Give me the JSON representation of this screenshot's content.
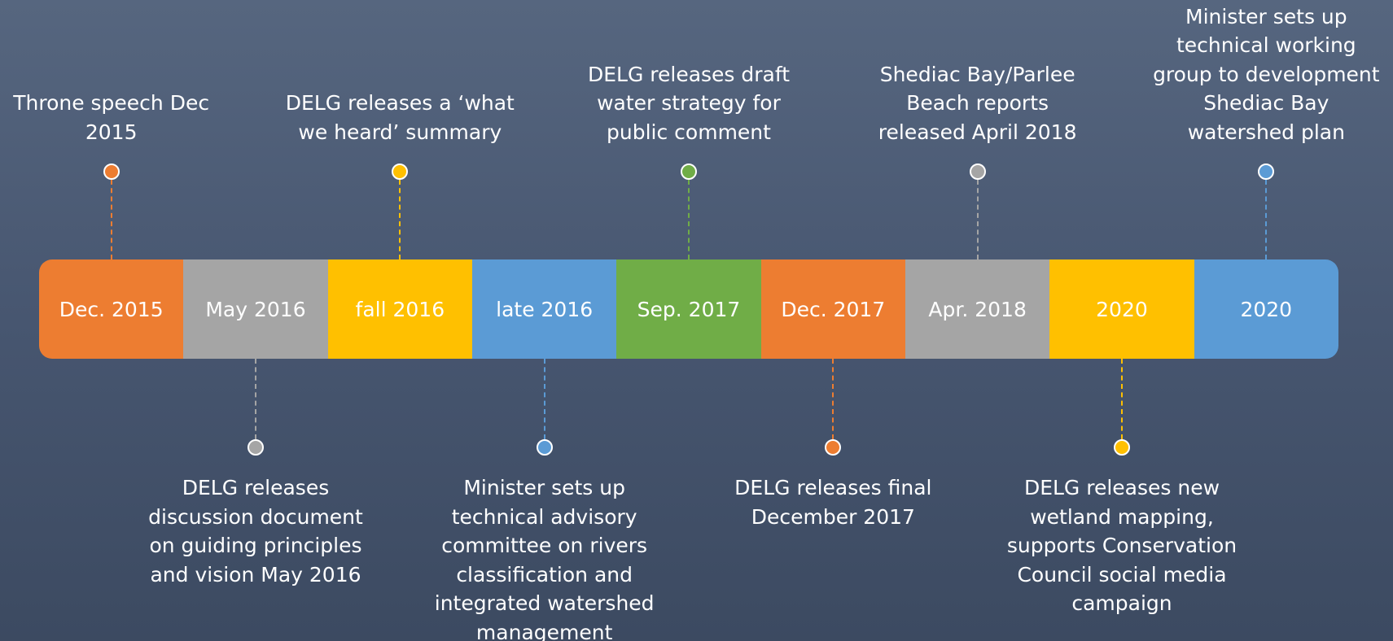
{
  "timeline": {
    "segments": [
      {
        "label": "Dec. 2015",
        "color": "#ED7D31",
        "note_above": [
          "Throne speech Dec",
          "2015"
        ]
      },
      {
        "label": "May 2016",
        "color": "#A5A5A5",
        "note_below": [
          "DELG releases",
          "discussion document",
          "on guiding principles",
          "and vision May 2016"
        ]
      },
      {
        "label": "fall 2016",
        "color": "#FFC000",
        "note_above": [
          "DELG releases a ‘what",
          "we heard’ summary"
        ]
      },
      {
        "label": "late 2016",
        "color": "#5B9BD5",
        "note_below": [
          "Minister sets up",
          "technical advisory",
          "committee on rivers",
          "classification and",
          "integrated watershed",
          "management"
        ]
      },
      {
        "label": "Sep. 2017",
        "color": "#70AD47",
        "note_above": [
          "DELG releases draft",
          "water strategy for",
          "public comment"
        ]
      },
      {
        "label": "Dec. 2017",
        "color": "#ED7D31",
        "note_below": [
          "DELG releases final",
          "December 2017"
        ]
      },
      {
        "label": "Apr. 2018",
        "color": "#A5A5A5",
        "note_above": [
          "Shediac Bay/Parlee",
          "Beach reports",
          "released April 2018"
        ]
      },
      {
        "label": "2020",
        "color": "#FFC000",
        "note_below": [
          "DELG releases new",
          "wetland mapping,",
          "supports Conservation",
          "Council social media",
          "campaign"
        ]
      },
      {
        "label": "2020",
        "color": "#5B9BD5",
        "note_above": [
          "Minister sets up",
          "technical working",
          "group to development",
          "Shediac Bay",
          "watershed plan"
        ]
      }
    ]
  }
}
